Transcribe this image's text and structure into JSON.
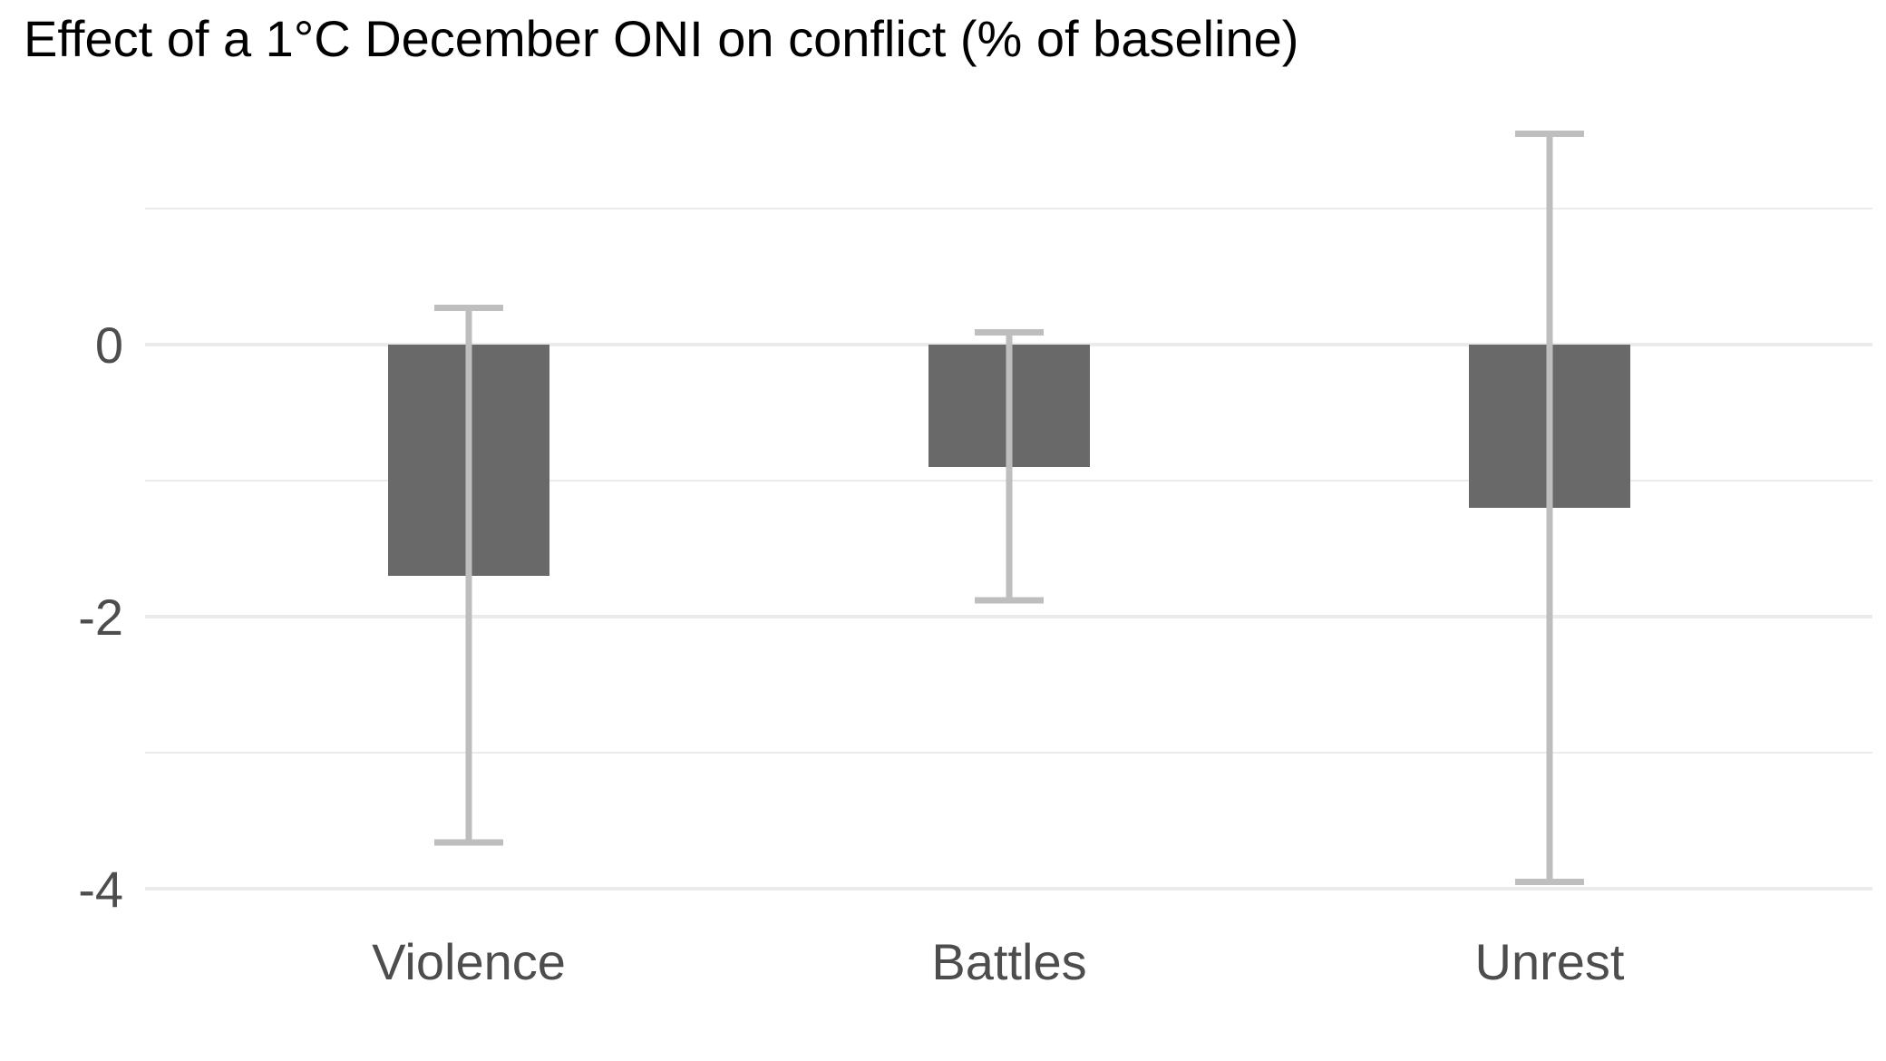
{
  "chart_data": {
    "type": "bar",
    "title": "Effect of a 1°C December ONI on conflict (% of baseline)",
    "xlabel": "",
    "ylabel": "",
    "categories": [
      "Violence",
      "Battles",
      "Unrest"
    ],
    "values": [
      -1.7,
      -0.9,
      -1.2
    ],
    "error_low": [
      -3.66,
      -1.88,
      -3.95
    ],
    "error_high": [
      0.27,
      0.09,
      1.55
    ],
    "ylim": [
      -4.0,
      1.55
    ],
    "y_ticks": [
      0,
      -2,
      -4
    ],
    "y_tick_labels": [
      "0",
      "-2",
      "-4"
    ],
    "grid": true,
    "colors": {
      "bar": "#696969",
      "error_bar": "#bebebe",
      "grid": "#ebebeb",
      "tick_text": "#4d4d4d"
    }
  }
}
